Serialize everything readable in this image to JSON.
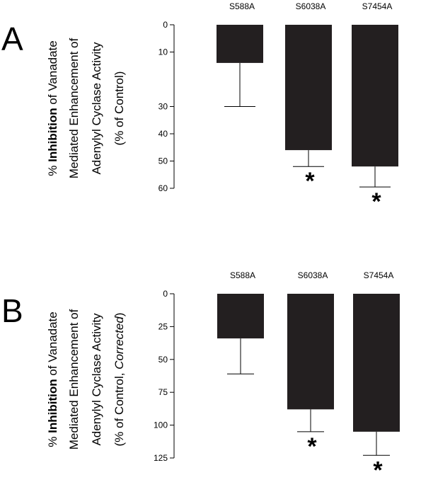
{
  "colors": {
    "bar": "#231f20",
    "axis": "#000000",
    "text": "#000000"
  },
  "panels": [
    {
      "letter": "A",
      "ylabel_lines": [
        [
          {
            "text": "% ",
            "style": "normal"
          },
          {
            "text": "Inhibition",
            "style": "bold"
          },
          {
            "text": " of Vanadate",
            "style": "normal"
          }
        ],
        [
          {
            "text": "Mediated Enhancement of",
            "style": "normal"
          }
        ],
        [
          {
            "text": "Adenylyl Cyclase Activity",
            "style": "normal"
          }
        ],
        [
          {
            "text": "(% of Control)",
            "style": "normal"
          }
        ]
      ]
    },
    {
      "letter": "B",
      "ylabel_lines": [
        [
          {
            "text": "% ",
            "style": "normal"
          },
          {
            "text": "Inhibition",
            "style": "bold"
          },
          {
            "text": " of Vanadate",
            "style": "normal"
          }
        ],
        [
          {
            "text": "Mediated Enhancement of",
            "style": "normal"
          }
        ],
        [
          {
            "text": "Adenylyl Cyclase Activity",
            "style": "normal"
          }
        ],
        [
          {
            "text": "(% of Control, ",
            "style": "normal"
          },
          {
            "text": "Corrected",
            "style": "italic"
          },
          {
            "text": ")",
            "style": "normal"
          }
        ]
      ]
    }
  ],
  "chart_data": [
    {
      "type": "bar",
      "panel": "A",
      "categories": [
        "S588A",
        "S6038A",
        "S7454A"
      ],
      "values": [
        14,
        46,
        52
      ],
      "error_plus": [
        16,
        6,
        7.5
      ],
      "significant": [
        false,
        true,
        true
      ],
      "significance_marker": "*",
      "yticks": [
        0,
        10,
        30,
        40,
        50,
        60
      ],
      "ytick_labels": [
        "0",
        "10",
        "30",
        "40",
        "50",
        "60"
      ],
      "ylim": [
        0,
        60
      ],
      "y_inverted": true,
      "category_labels_position": "top",
      "xlabel": "",
      "ylabel": "% Inhibition of Vanadate Mediated Enhancement of Adenylyl Cyclase Activity (% of Control)"
    },
    {
      "type": "bar",
      "panel": "B",
      "categories": [
        "S588A",
        "S6038A",
        "S7454A"
      ],
      "values": [
        34,
        88,
        105
      ],
      "error_plus": [
        27,
        17,
        18
      ],
      "significant": [
        false,
        true,
        true
      ],
      "significance_marker": "*",
      "yticks": [
        0,
        25,
        50,
        75,
        100,
        125
      ],
      "ytick_labels": [
        "0",
        "25",
        "50",
        "75",
        "100",
        "125"
      ],
      "ylim": [
        0,
        125
      ],
      "y_inverted": true,
      "category_labels_position": "top",
      "xlabel": "",
      "ylabel": "% Inhibition of Vanadate Mediated Enhancement of Adenylyl Cyclase Activity (% of Control, Corrected)"
    }
  ]
}
